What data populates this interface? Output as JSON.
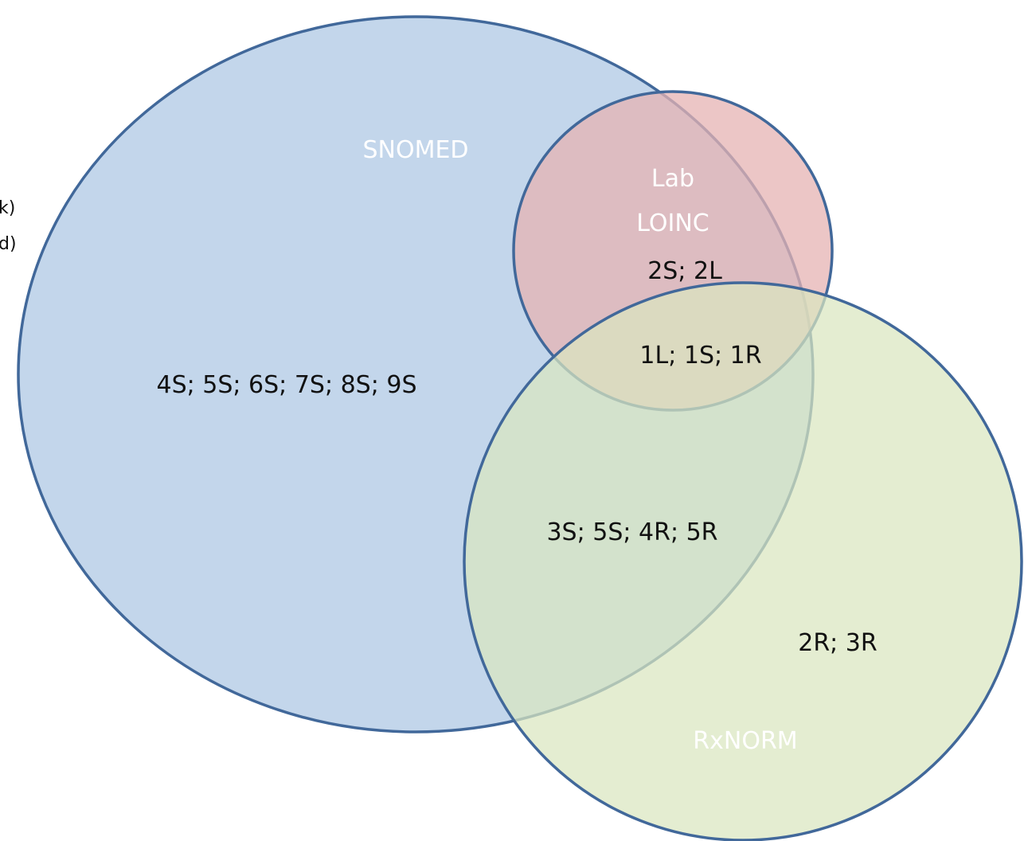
{
  "sets": [
    {
      "id": "snomed",
      "label": "SNOMED",
      "fill": "#b8cfe7",
      "stroke": "#41689a"
    },
    {
      "id": "lab",
      "label_lines": [
        "Lab",
        "LOINC"
      ],
      "fill": "#e6b3b3",
      "stroke": "#41689a"
    },
    {
      "id": "rxnorm",
      "label": "RxNORM",
      "fill": "#d9e6bf",
      "stroke": "#41689a"
    }
  ],
  "regions": {
    "snomed_only": "4S; 5S; 6S; 7S; 8S; 9S",
    "snomed_lab": "2S; 2L",
    "all_three": "1L; 1S; 1R",
    "snomed_rxnorm": "3S; 5S; 4R; 5R",
    "rxnorm_only": "2R; 3R"
  },
  "margin_fragments": [
    "k)",
    "d)"
  ]
}
